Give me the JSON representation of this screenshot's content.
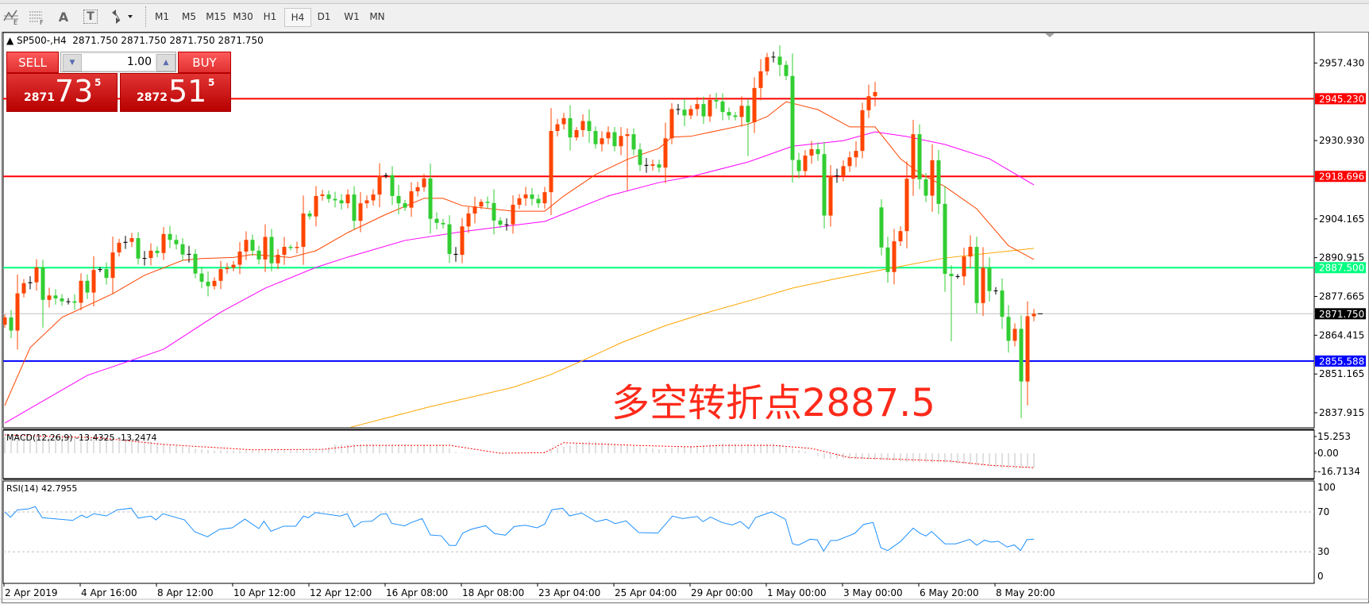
{
  "toolbar": {
    "icons": [
      "indicators-icon",
      "fibonacci-icon",
      "text-icon",
      "text-label-icon",
      "arrows-icon"
    ],
    "text_icon_label": "A",
    "label_icon_label": "T",
    "timeframes": [
      "M1",
      "M5",
      "M15",
      "M30",
      "H1",
      "H4",
      "D1",
      "W1",
      "MN"
    ],
    "selected_timeframe": "H4"
  },
  "chart": {
    "title": "SP500-,H4  2871.750 2871.750 2871.750 2871.750",
    "one_click": {
      "sell_label": "SELL",
      "buy_label": "BUY",
      "lot": "1.00",
      "sell_price": {
        "prefix": "2871",
        "big": "73",
        "sup": "5"
      },
      "buy_price": {
        "prefix": "2872",
        "big": "51",
        "sup": "5"
      }
    },
    "annotation": "多空转折点2887.5",
    "macd_label": "MACD(12,26,9) -13.4325 -13.2474",
    "rsi_label": "RSI(14) 42.7955"
  },
  "chart_data": {
    "type": "candlestick",
    "symbol": "SP500-",
    "timeframe": "H4",
    "colors": {
      "bull": "#ff4500",
      "bear": "#32cd32",
      "doji": "#000000",
      "ma_fast": "#ff4500",
      "ma_mid": "#ff00ff",
      "ma_slow": "#ffa500"
    },
    "price_axis_ticks": [
      "2957.430",
      "2930.930",
      "2904.165",
      "2890.915",
      "2877.665",
      "2864.415",
      "2851.165",
      "2837.915"
    ],
    "price_axis_tick_values": [
      2957.43,
      2930.93,
      2904.165,
      2890.915,
      2877.665,
      2864.415,
      2851.165,
      2837.915
    ],
    "price_levels": [
      {
        "value": 2945.23,
        "label": "2945.230",
        "color": "#ff0000"
      },
      {
        "value": 2918.696,
        "label": "2918.696",
        "color": "#ff0000"
      },
      {
        "value": 2887.5,
        "label": "2887.500",
        "color": "#00ff80"
      },
      {
        "value": 2855.588,
        "label": "2855.588",
        "color": "#0000ff"
      }
    ],
    "bid": {
      "value": 2871.75,
      "label": "2871.750"
    },
    "time_labels": [
      "2 Apr 2019",
      "4 Apr 16:00",
      "8 Apr 12:00",
      "10 Apr 12:00",
      "12 Apr 12:00",
      "16 Apr 08:00",
      "18 Apr 08:00",
      "23 Apr 04:00",
      "25 Apr 04:00",
      "29 Apr 00:00",
      "1 May 00:00",
      "3 May 00:00",
      "6 May 20:00",
      "8 May 20:00"
    ],
    "time_label_every_bars": 12,
    "first_open": 2868,
    "gap_opens": [
      [
        138,
        2908.1
      ]
    ],
    "closes": [
      2870.5,
      2866,
      2878.7,
      2882.2,
      2882.5,
      2887.6,
      2876.5,
      2878,
      2877,
      2876,
      2876,
      2875.5,
      2883,
      2879,
      2886.7,
      2887,
      2884,
      2892.7,
      2896,
      2896.3,
      2897.6,
      2890.6,
      2890.8,
      2893.3,
      2892.5,
      2899,
      2897,
      2895.5,
      2892,
      2892.2,
      2885.5,
      2882.7,
      2881.2,
      2883,
      2887,
      2887.5,
      2888.5,
      2893,
      2897,
      2893.3,
      2890.3,
      2898,
      2889,
      2891.9,
      2894.6,
      2894.2,
      2894.6,
      2906,
      2905,
      2912,
      2912.5,
      2911,
      2910.5,
      2909.5,
      2912.5,
      2903.5,
      2909.5,
      2910.5,
      2912.5,
      2918.8,
      2919.1,
      2912,
      2909.5,
      2908,
      2913.6,
      2915,
      2918,
      2904.2,
      2902.8,
      2902.3,
      2892.2,
      2891.9,
      2901.6,
      2906,
      2908.4,
      2910,
      2909.6,
      2903.6,
      2902.2,
      2902.3,
      2909,
      2911.2,
      2912.5,
      2911,
      2909.5,
      2913.3,
      2934.2,
      2936.5,
      2938.6,
      2932,
      2934.5,
      2937.6,
      2934.2,
      2929.7,
      2931.7,
      2933.8,
      2929,
      2932.5,
      2933.1,
      2927.9,
      2922.6,
      2922.3,
      2922.8,
      2921.7,
      2931.7,
      2941.7,
      2941.5,
      2939.5,
      2941.7,
      2943.4,
      2939.2,
      2944.8,
      2944.3,
      2940.7,
      2939.5,
      2939,
      2942.8,
      2937.2,
      2948.9,
      2954.6,
      2959.4,
      2959.6,
      2956.8,
      2953,
      2924.3,
      2920.5,
      2925.8,
      2928,
      2926.3,
      2905.3,
      2918.8,
      2919,
      2922.2,
      2925.2,
      2927.4,
      2941.3,
      2946.1,
      2947.5,
      2894.4,
      2886,
      2896.5,
      2900,
      2917.9,
      2933.1,
      2917.7,
      2912.1,
      2924.2,
      2909.3,
      2885.4,
      2884.6,
      2884.5,
      2891.3,
      2894.6,
      2875.4,
      2887.5,
      2879.5,
      2879.7,
      2870.7,
      2862.5,
      2866.6,
      2848.6,
      2870.9,
      2871.75
    ],
    "extreme_highs": [
      [
        120,
        2960.9
      ],
      [
        143,
        2938
      ],
      [
        136,
        2950
      ],
      [
        154,
        2894.5
      ],
      [
        161,
        2876
      ]
    ],
    "extreme_lows": [
      [
        160,
        2836.1
      ],
      [
        149,
        2862.3
      ],
      [
        98,
        2913.9
      ],
      [
        117,
        2925.6
      ],
      [
        129,
        2900.9
      ],
      [
        6,
        2867
      ]
    ],
    "ma_fast": [
      [
        0,
        2840.4
      ],
      [
        4,
        2860.2
      ],
      [
        9,
        2870.5
      ],
      [
        17,
        2878.6
      ],
      [
        22,
        2884.9
      ],
      [
        28,
        2890
      ],
      [
        31,
        2890.6
      ],
      [
        36,
        2891
      ],
      [
        39,
        2892
      ],
      [
        45,
        2891
      ],
      [
        49,
        2893.3
      ],
      [
        54,
        2899.5
      ],
      [
        60,
        2905.7
      ],
      [
        66,
        2911.2
      ],
      [
        69,
        2911.2
      ],
      [
        72,
        2908.7
      ],
      [
        80,
        2906.8
      ],
      [
        85,
        2906.8
      ],
      [
        88,
        2912
      ],
      [
        93,
        2919.3
      ],
      [
        98,
        2924.5
      ],
      [
        103,
        2928.3
      ],
      [
        105,
        2932.1
      ],
      [
        108,
        2932.4
      ],
      [
        117,
        2936.5
      ],
      [
        120,
        2939.1
      ],
      [
        123,
        2944.2
      ],
      [
        128,
        2941.5
      ],
      [
        133,
        2935.6
      ],
      [
        137,
        2935.6
      ],
      [
        141,
        2924.7
      ],
      [
        144,
        2919.8
      ],
      [
        148,
        2915.2
      ],
      [
        153,
        2907.6
      ],
      [
        158,
        2895
      ],
      [
        162,
        2890.3
      ]
    ],
    "ma_mid": [
      [
        0,
        2834.4
      ],
      [
        13,
        2850.7
      ],
      [
        25,
        2859.6
      ],
      [
        34,
        2872.3
      ],
      [
        41,
        2880.5
      ],
      [
        49,
        2887.6
      ],
      [
        54,
        2891.1
      ],
      [
        63,
        2896.8
      ],
      [
        72,
        2899.8
      ],
      [
        85,
        2903.3
      ],
      [
        95,
        2912
      ],
      [
        103,
        2916.6
      ],
      [
        108,
        2918.6
      ],
      [
        117,
        2923.6
      ],
      [
        124,
        2929
      ],
      [
        132,
        2930.9
      ],
      [
        137,
        2933.9
      ],
      [
        142,
        2932.3
      ],
      [
        148,
        2929.6
      ],
      [
        155,
        2924.7
      ],
      [
        162,
        2915.8
      ]
    ],
    "ma_slow": [
      [
        54.5,
        2833
      ],
      [
        66.6,
        2839.8
      ],
      [
        80,
        2846.6
      ],
      [
        86,
        2851
      ],
      [
        91,
        2855.8
      ],
      [
        97,
        2861.8
      ],
      [
        104,
        2867.7
      ],
      [
        110,
        2871.8
      ],
      [
        118,
        2876.7
      ],
      [
        124,
        2880.5
      ],
      [
        131,
        2883.8
      ],
      [
        137,
        2886.3
      ],
      [
        148,
        2890.8
      ],
      [
        162,
        2894.1
      ]
    ],
    "macd": {
      "params": "12,26,9",
      "axis_ticks": [
        "15.253",
        "0.00",
        "-16.7134"
      ],
      "axis_tick_values": [
        15.253,
        0,
        -16.7134
      ],
      "histogram": [
        [
          0,
          15
        ],
        [
          10,
          15.5
        ],
        [
          20,
          13
        ],
        [
          26,
          8
        ],
        [
          30,
          4
        ],
        [
          33,
          2.5
        ],
        [
          50,
          2.5
        ],
        [
          52,
          8
        ],
        [
          69,
          8
        ],
        [
          71,
          1
        ],
        [
          74,
          0
        ],
        [
          84,
          0.5
        ],
        [
          86,
          3.7
        ],
        [
          92,
          10.9
        ],
        [
          97,
          8
        ],
        [
          103,
          3.6
        ],
        [
          108,
          7
        ],
        [
          113,
          8.5
        ],
        [
          121,
          8.5
        ],
        [
          125,
          3
        ],
        [
          127,
          0
        ],
        [
          129,
          -5
        ],
        [
          136,
          -5.5
        ],
        [
          142,
          -8
        ],
        [
          149,
          -9
        ],
        [
          155,
          -12
        ],
        [
          158,
          -14
        ],
        [
          162,
          -13.43
        ]
      ],
      "signal": [
        [
          0,
          16.7
        ],
        [
          15,
          14
        ],
        [
          25,
          8
        ],
        [
          39,
          3.1
        ],
        [
          50,
          3.5
        ],
        [
          56,
          7.2
        ],
        [
          70,
          7.2
        ],
        [
          78,
          0
        ],
        [
          85,
          0.5
        ],
        [
          88,
          9.6
        ],
        [
          100,
          7
        ],
        [
          108,
          5.8
        ],
        [
          113,
          7.2
        ],
        [
          121,
          7.2
        ],
        [
          127,
          4.3
        ],
        [
          133,
          -4
        ],
        [
          138,
          -5
        ],
        [
          149,
          -7.3
        ],
        [
          155,
          -11
        ],
        [
          162,
          -13.25
        ]
      ],
      "colors": {
        "histogram": "#c0c0c0",
        "signal": "#ff0000"
      }
    },
    "rsi": {
      "period": 14,
      "axis_ticks": [
        "100",
        "70",
        "30",
        "0"
      ],
      "levels": [
        70,
        30
      ],
      "color": "#1e90ff",
      "points": [
        [
          0,
          70
        ],
        [
          0.9,
          64.7
        ],
        [
          2,
          72.1
        ],
        [
          3.7,
          73
        ],
        [
          4.8,
          75.3
        ],
        [
          5.9,
          64.2
        ],
        [
          8.7,
          62.6
        ],
        [
          10.7,
          61.5
        ],
        [
          12.1,
          66.8
        ],
        [
          12.9,
          64.2
        ],
        [
          14,
          68.2
        ],
        [
          16,
          66
        ],
        [
          17.7,
          72.1
        ],
        [
          19.9,
          73.7
        ],
        [
          21,
          63.9
        ],
        [
          23,
          65.8
        ],
        [
          23.8,
          62
        ],
        [
          24.9,
          68.2
        ],
        [
          28.3,
          62
        ],
        [
          29.9,
          50.1
        ],
        [
          31.9,
          45.1
        ],
        [
          33.8,
          52.5
        ],
        [
          35.8,
          54.1
        ],
        [
          37.8,
          62.8
        ],
        [
          40,
          53.3
        ],
        [
          40.8,
          60.7
        ],
        [
          41.9,
          50.6
        ],
        [
          43.9,
          55.7
        ],
        [
          45.8,
          55.7
        ],
        [
          47,
          65.8
        ],
        [
          47.8,
          64.2
        ],
        [
          48.9,
          69.4
        ],
        [
          52.8,
          65.8
        ],
        [
          53.9,
          68.2
        ],
        [
          55,
          54.9
        ],
        [
          56.2,
          60.2
        ],
        [
          57.8,
          60.7
        ],
        [
          59.2,
          67.6
        ],
        [
          60.1,
          68.2
        ],
        [
          60.9,
          58.6
        ],
        [
          62.9,
          56
        ],
        [
          64,
          59.4
        ],
        [
          65.7,
          63.3
        ],
        [
          67,
          46.9
        ],
        [
          68.7,
          46.1
        ],
        [
          70,
          36.4
        ],
        [
          71,
          36.4
        ],
        [
          72.1,
          48.8
        ],
        [
          73.5,
          52.8
        ],
        [
          75.7,
          56.2
        ],
        [
          77.1,
          48.3
        ],
        [
          78.8,
          46.7
        ],
        [
          80.2,
          55.4
        ],
        [
          81.9,
          56.7
        ],
        [
          83.8,
          54.1
        ],
        [
          85,
          57.8
        ],
        [
          86.1,
          72.1
        ],
        [
          87.8,
          73.7
        ],
        [
          88.9,
          66
        ],
        [
          90.8,
          68.9
        ],
        [
          93.1,
          60.2
        ],
        [
          94.7,
          62.6
        ],
        [
          96.1,
          58.3
        ],
        [
          97.8,
          61
        ],
        [
          99.8,
          49.3
        ],
        [
          102.8,
          48.8
        ],
        [
          105.1,
          65.8
        ],
        [
          106.7,
          63.3
        ],
        [
          109,
          65.4
        ],
        [
          109.9,
          60.2
        ],
        [
          111.1,
          64.9
        ],
        [
          112.9,
          59.4
        ],
        [
          114.5,
          57
        ],
        [
          115.8,
          60.4
        ],
        [
          117.1,
          53.3
        ],
        [
          118.2,
          64.4
        ],
        [
          120.7,
          70
        ],
        [
          122.9,
          62.6
        ],
        [
          124,
          38.2
        ],
        [
          124.9,
          36.6
        ],
        [
          126.8,
          42.7
        ],
        [
          127.9,
          42
        ],
        [
          128.9,
          30.8
        ],
        [
          130,
          41.4
        ],
        [
          131,
          41.4
        ],
        [
          133.8,
          48.5
        ],
        [
          135.2,
          57.5
        ],
        [
          136.7,
          59.4
        ],
        [
          137.9,
          34.2
        ],
        [
          139,
          31.3
        ],
        [
          141,
          40.3
        ],
        [
          143,
          53.8
        ],
        [
          144.1,
          48.5
        ],
        [
          145,
          45.9
        ],
        [
          145.9,
          50.4
        ],
        [
          148,
          38
        ],
        [
          149.7,
          38
        ],
        [
          151.9,
          42.5
        ],
        [
          153,
          36.6
        ],
        [
          154.2,
          41.7
        ],
        [
          155.3,
          39.8
        ],
        [
          156.4,
          40.6
        ],
        [
          157.8,
          34.8
        ],
        [
          158.9,
          37
        ],
        [
          159.9,
          31.3
        ],
        [
          160.9,
          42.2
        ],
        [
          162,
          42.8
        ]
      ]
    }
  }
}
